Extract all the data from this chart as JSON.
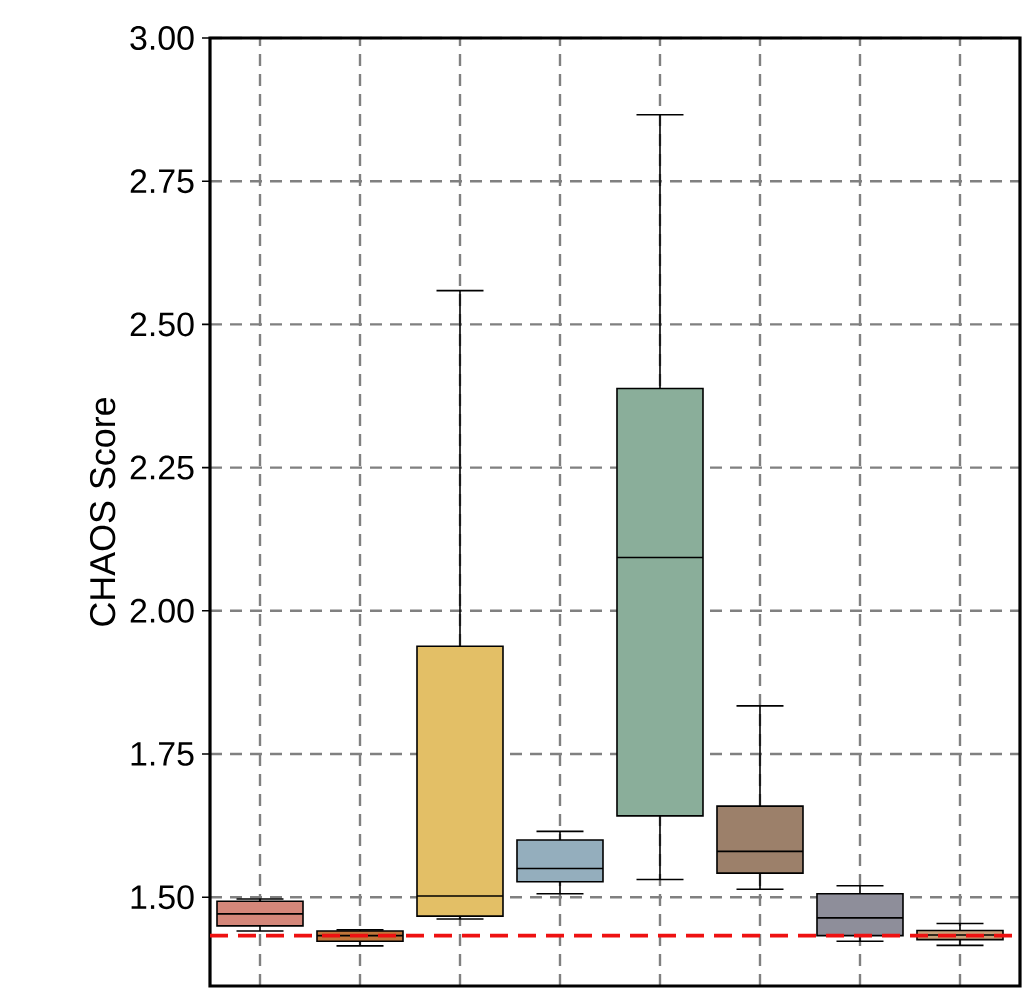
{
  "chart_data": {
    "type": "box",
    "ylabel": "CHAOS Score",
    "categories": [
      null,
      null,
      null,
      null,
      null,
      null,
      null,
      null
    ],
    "colors": [
      "#d4877a",
      "#c0763a",
      "#e3bf66",
      "#94aebd",
      "#8aae9a",
      "#9c806a",
      "#8e8e9a",
      "#c9a27a"
    ],
    "boxes": [
      {
        "low": 1.441,
        "q1": 1.45,
        "median": 1.471,
        "q3": 1.493,
        "high": 1.497
      },
      {
        "low": 1.415,
        "q1": 1.423,
        "median": 1.433,
        "q3": 1.441,
        "high": 1.443
      },
      {
        "low": 1.462,
        "q1": 1.467,
        "median": 1.502,
        "q3": 1.938,
        "high": 2.559
      },
      {
        "low": 1.506,
        "q1": 1.527,
        "median": 1.55,
        "q3": 1.6,
        "high": 1.615
      },
      {
        "low": 1.531,
        "q1": 1.642,
        "median": 2.093,
        "q3": 2.388,
        "high": 2.866
      },
      {
        "low": 1.514,
        "q1": 1.542,
        "median": 1.58,
        "q3": 1.659,
        "high": 1.834
      },
      {
        "low": 1.423,
        "q1": 1.433,
        "median": 1.464,
        "q3": 1.506,
        "high": 1.52
      },
      {
        "low": 1.416,
        "q1": 1.426,
        "median": 1.434,
        "q3": 1.442,
        "high": 1.454
      }
    ],
    "ylim": [
      1.345,
      3.0
    ],
    "yticks": [
      {
        "value": 1.5,
        "label": "1.50"
      },
      {
        "value": 1.75,
        "label": "1.75"
      },
      {
        "value": 2.0,
        "label": "2.00"
      },
      {
        "value": 2.25,
        "label": "2.25"
      },
      {
        "value": 2.5,
        "label": "2.50"
      },
      {
        "value": 2.75,
        "label": "2.75"
      },
      {
        "value": 3.0,
        "label": "3.00"
      }
    ],
    "tick_labels": "y",
    "grid": true,
    "ref_lines": [
      {
        "axis": "y",
        "value": 1.433,
        "color": "#ee1111",
        "line_style": "dashed"
      }
    ]
  }
}
